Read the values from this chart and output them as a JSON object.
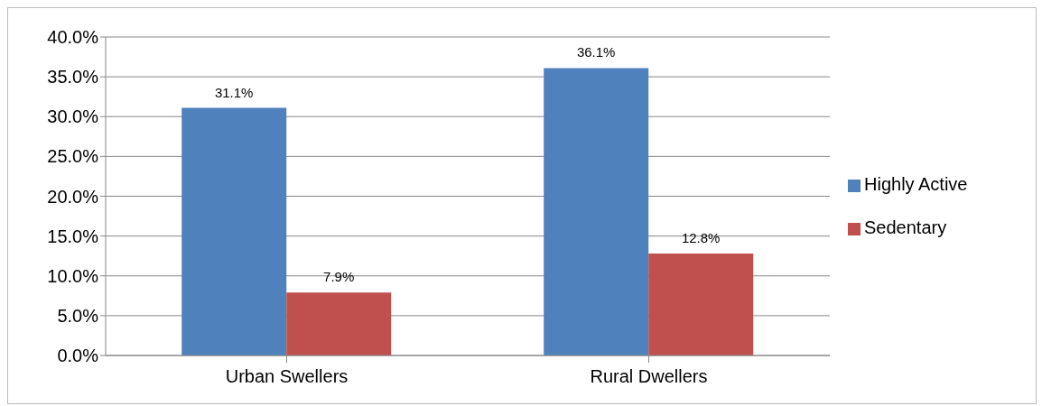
{
  "chart_data": {
    "type": "bar",
    "categories": [
      "Urban Swellers",
      "Rural Dwellers"
    ],
    "series": [
      {
        "name": "Highly Active",
        "color": "#4f81bd",
        "values": [
          31.1,
          36.1
        ],
        "value_labels": [
          "31.1%",
          "36.1%"
        ]
      },
      {
        "name": "Sedentary",
        "color": "#c0504d",
        "values": [
          7.9,
          12.8
        ],
        "value_labels": [
          "7.9%",
          "12.8%"
        ]
      }
    ],
    "ylim": [
      0,
      40
    ],
    "yticks": [
      {
        "value": 0,
        "label": "0.0%"
      },
      {
        "value": 5,
        "label": "5.0%"
      },
      {
        "value": 10,
        "label": "10.0%"
      },
      {
        "value": 15,
        "label": "15.0%"
      },
      {
        "value": 20,
        "label": "20.0%"
      },
      {
        "value": 25,
        "label": "25.0%"
      },
      {
        "value": 30,
        "label": "30.0%"
      },
      {
        "value": 35,
        "label": "35.0%"
      },
      {
        "value": 40,
        "label": "40.0%"
      }
    ],
    "grid": "y",
    "legend": "right"
  }
}
